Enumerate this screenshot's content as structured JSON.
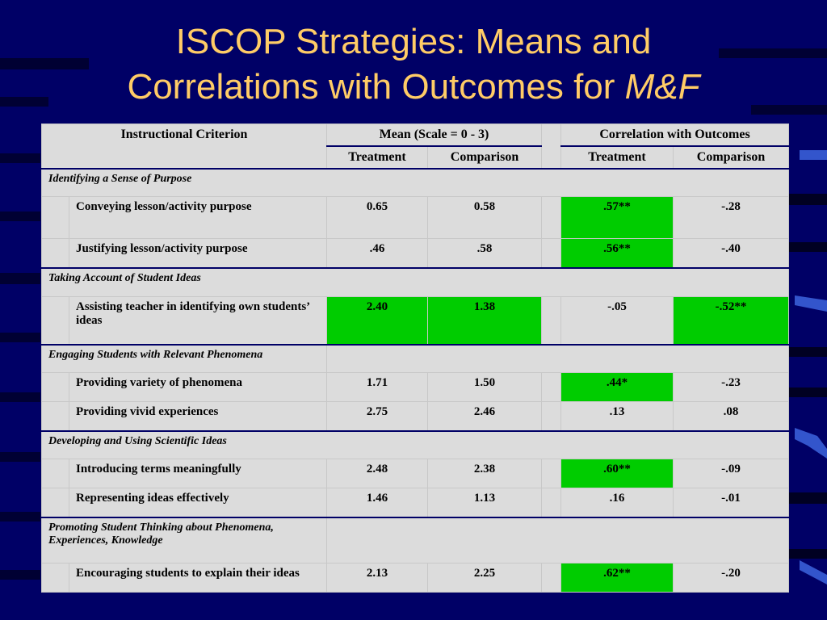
{
  "title": {
    "line1": "ISCOP Strategies: Means and",
    "line2_plain": "Correlations with Outcomes for ",
    "line2_italic": "M&F"
  },
  "table": {
    "headers": {
      "criterion": "Instructional Criterion",
      "mean_group": "Mean (Scale = 0 - 3)",
      "corr_group": "Correlation with Outcomes",
      "mean_treatment": "Treatment",
      "mean_comparison": "Comparison",
      "corr_treatment": "Treatment",
      "corr_comparison": "Comparison"
    },
    "sections": [
      {
        "name": "Identifying a Sense of Purpose",
        "rows": [
          {
            "label": "Conveying lesson/activity purpose",
            "mean_t": "0.65",
            "mean_c": "0.58",
            "corr_t": ".57**",
            "corr_c": "-.28"
          },
          {
            "label": "Justifying lesson/activity purpose",
            "mean_t": ".46",
            "mean_c": ".58",
            "corr_t": ".56**",
            "corr_c": "-.40"
          }
        ]
      },
      {
        "name": "Taking Account of Student Ideas",
        "rows": [
          {
            "label": "Assisting teacher in identifying own students’ ideas",
            "mean_t": "2.40",
            "mean_c": "1.38",
            "corr_t": "-.05",
            "corr_c": "-.52**"
          }
        ]
      },
      {
        "name": "Engaging Students with Relevant Phenomena",
        "rows": [
          {
            "label": "Providing variety of phenomena",
            "mean_t": "1.71",
            "mean_c": "1.50",
            "corr_t": ".44*",
            "corr_c": "-.23"
          },
          {
            "label": "Providing vivid experiences",
            "mean_t": "2.75",
            "mean_c": "2.46",
            "corr_t": ".13",
            "corr_c": ".08"
          }
        ]
      },
      {
        "name": "Developing and Using Scientific Ideas",
        "rows": [
          {
            "label": "Introducing terms meaningfully",
            "mean_t": "2.48",
            "mean_c": "2.38",
            "corr_t": ".60**",
            "corr_c": "-.09"
          },
          {
            "label": "Representing ideas effectively",
            "mean_t": "1.46",
            "mean_c": "1.13",
            "corr_t": ".16",
            "corr_c": "-.01"
          }
        ]
      },
      {
        "name": "Promoting Student Thinking about Phenomena, Experiences, Knowledge",
        "rows": [
          {
            "label": "Encouraging students to explain their ideas",
            "mean_t": "2.13",
            "mean_c": "2.25",
            "corr_t": ".62**",
            "corr_c": "-.20"
          }
        ]
      }
    ]
  },
  "colors": {
    "background": "#000066",
    "title": "#FFCC66",
    "table_bg": "#DCDCDC",
    "highlight": "#00CC00"
  }
}
